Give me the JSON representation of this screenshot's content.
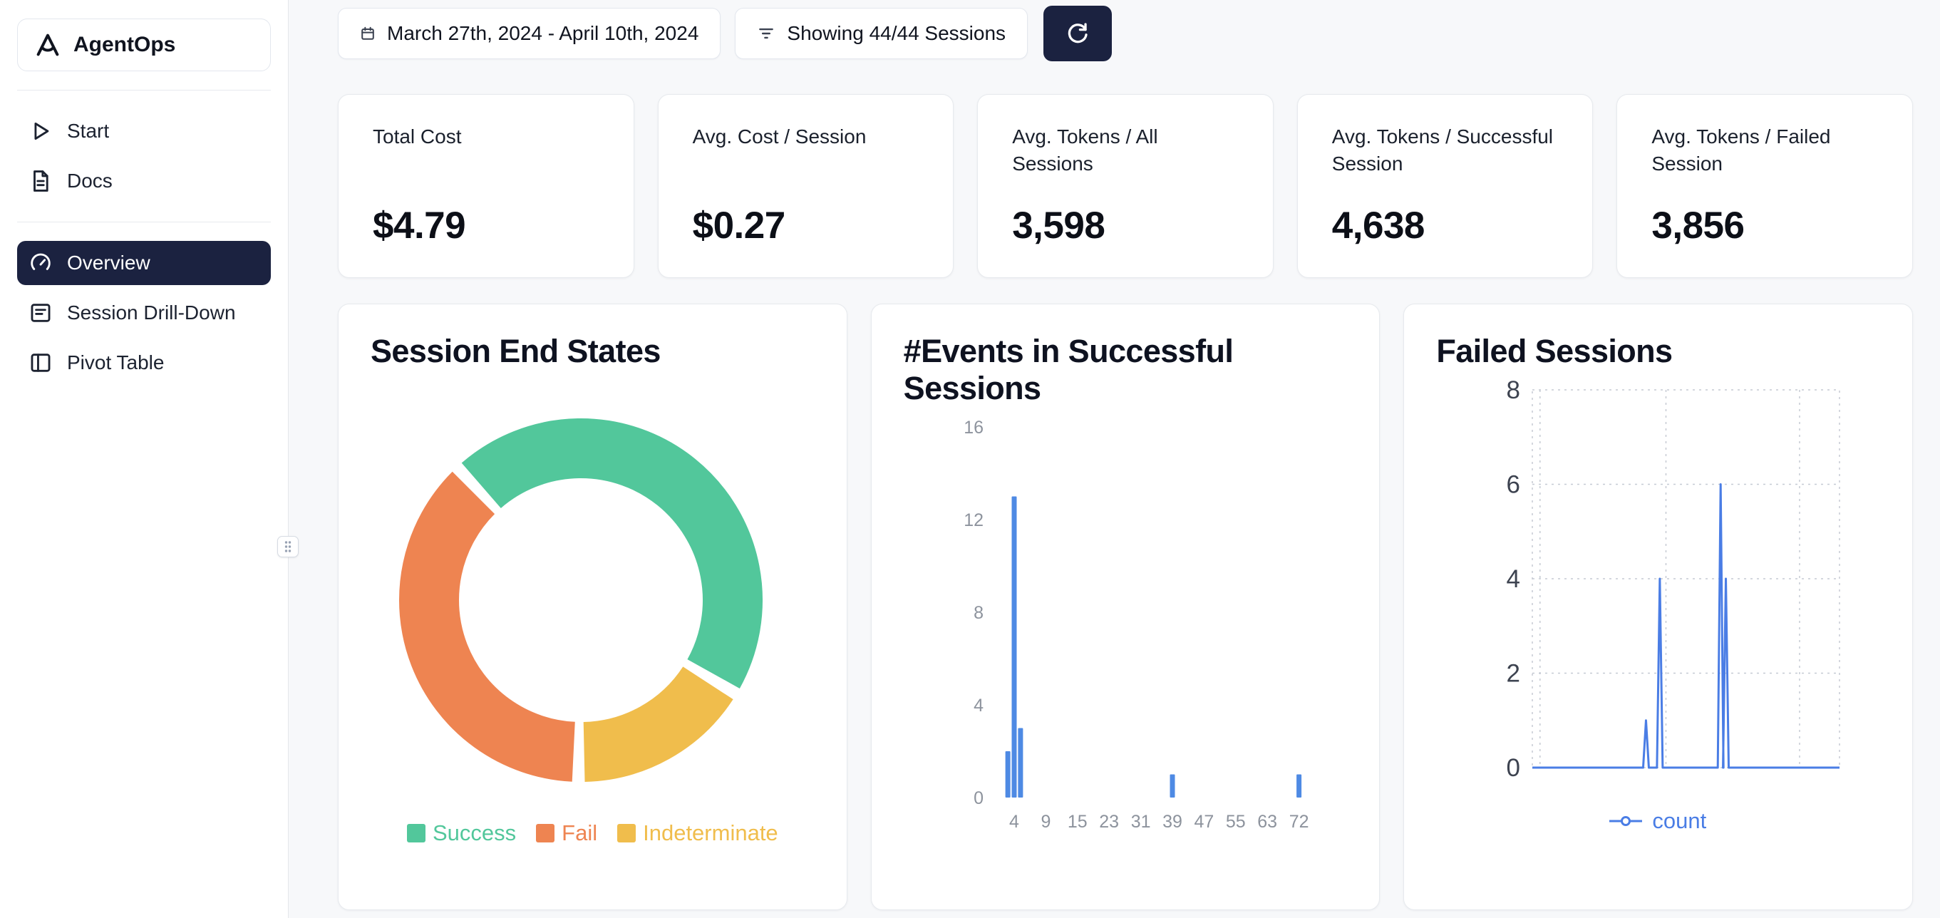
{
  "app": {
    "name": "AgentOps"
  },
  "sidebar": {
    "primary": [
      {
        "label": "Start",
        "icon": "play-icon"
      },
      {
        "label": "Docs",
        "icon": "docs-icon"
      }
    ],
    "secondary": [
      {
        "label": "Overview",
        "icon": "gauge-icon",
        "active": true
      },
      {
        "label": "Session Drill-Down",
        "icon": "drilldown-icon",
        "active": false
      },
      {
        "label": "Pivot Table",
        "icon": "pivot-table-icon",
        "active": false
      }
    ]
  },
  "topbar": {
    "date_range": "March 27th, 2024 - April 10th, 2024",
    "filter_label": "Showing 44/44 Sessions"
  },
  "stats": [
    {
      "label": "Total Cost",
      "value": "$4.79"
    },
    {
      "label": "Avg. Cost / Session",
      "value": "$0.27"
    },
    {
      "label": "Avg. Tokens / All Sessions",
      "value": "3,598"
    },
    {
      "label": "Avg. Tokens / Successful Session",
      "value": "4,638"
    },
    {
      "label": "Avg. Tokens / Failed Session",
      "value": "3,856"
    }
  ],
  "chart_data": [
    {
      "type": "pie",
      "donut": true,
      "title": "Session End States",
      "labels": [
        "Success",
        "Fail",
        "Indeterminate"
      ],
      "values": [
        46,
        38,
        16
      ],
      "unit": "percent-estimated",
      "colors": [
        "#52c79b",
        "#ee8451",
        "#f0bd4c"
      ],
      "legend_position": "bottom"
    },
    {
      "type": "bar",
      "title": "#Events in Successful Sessions",
      "x_ticks": [
        4,
        9,
        15,
        23,
        31,
        39,
        47,
        55,
        63,
        72
      ],
      "y_ticks": [
        0,
        4,
        8,
        12,
        16
      ],
      "ylim": [
        0,
        16
      ],
      "bars": [
        {
          "x": 3,
          "count": 2
        },
        {
          "x": 4,
          "count": 13
        },
        {
          "x": 5,
          "count": 3
        },
        {
          "x": 39,
          "count": 1
        },
        {
          "x": 72,
          "count": 1
        }
      ],
      "color": "#4e8ae4",
      "grid": false
    },
    {
      "type": "line",
      "title": "Failed Sessions",
      "y_ticks": [
        0,
        2,
        4,
        6,
        8
      ],
      "ylim": [
        0,
        8
      ],
      "grid": "dashed",
      "legend_position": "bottom",
      "series": [
        {
          "name": "count",
          "color": "#4a7de5",
          "baseline": 0,
          "spikes": [
            {
              "x_pct": 37,
              "y": 1
            },
            {
              "x_pct": 41.5,
              "y": 4
            },
            {
              "x_pct": 61.3,
              "y": 6
            },
            {
              "x_pct": 63,
              "y": 4
            }
          ]
        }
      ]
    }
  ],
  "colors": {
    "accent_dark": "#1b2240",
    "background": "#f7f8fa",
    "card_border": "#e7eaee",
    "success": "#52c79b",
    "fail": "#ee8451",
    "indeterminate": "#f0bd4c",
    "chart_blue": "#4e8ae4",
    "axis_gray": "#8d939d"
  }
}
